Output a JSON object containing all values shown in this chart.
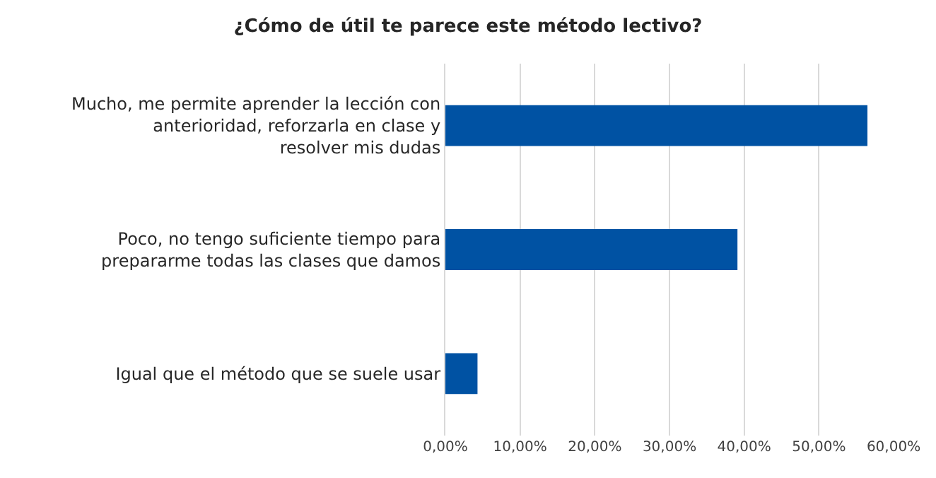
{
  "chart_data": {
    "type": "bar",
    "orientation": "horizontal",
    "title": "¿Cómo de útil te parece este método lectivo?",
    "categories": [
      "Mucho, me permite aprender la lección con anterioridad, reforzarla en clase y resolver mis dudas",
      "Poco, no tengo suficiente tiempo para prepararme todas las clases que damos",
      "Igual que el método que se suele usar"
    ],
    "values": [
      56.5,
      39.1,
      4.3
    ],
    "color": "#0052a3",
    "xlim": [
      0,
      60
    ],
    "xticks": [
      {
        "value": 0,
        "label": "0,00%"
      },
      {
        "value": 10,
        "label": "10,00%"
      },
      {
        "value": 20,
        "label": "20,00%"
      },
      {
        "value": 30,
        "label": "30,00%"
      },
      {
        "value": 40,
        "label": "40,00%"
      },
      {
        "value": 50,
        "label": "50,00%"
      },
      {
        "value": 60,
        "label": "60,00%"
      }
    ],
    "grid": "x"
  }
}
